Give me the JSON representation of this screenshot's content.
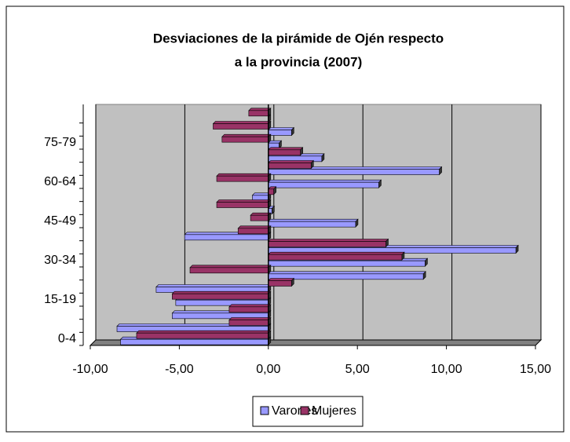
{
  "chart_data": {
    "type": "bar",
    "orientation": "horizontal",
    "title": "Desviaciones de la pirámide de Ojén respecto a la provincia (2007)",
    "categories": [
      "0-4",
      null,
      null,
      "15-19",
      null,
      null,
      "30-34",
      null,
      null,
      "45-49",
      null,
      null,
      "60-64",
      null,
      null,
      "75-79",
      null,
      null
    ],
    "series": [
      {
        "name": "Varones",
        "color": "#9999ff",
        "values": [
          -8.3,
          -8.5,
          -5.4,
          -5.2,
          -6.3,
          8.7,
          8.8,
          13.9,
          -4.7,
          4.9,
          0.2,
          -0.9,
          6.2,
          9.6,
          3.0,
          0.6,
          1.3,
          0
        ]
      },
      {
        "name": "Mujeres",
        "color": "#993366",
        "values": [
          -7.4,
          -2.2,
          -2.2,
          -5.4,
          1.3,
          -4.4,
          7.5,
          6.6,
          -1.7,
          -1.0,
          -2.9,
          0.3,
          -2.9,
          2.4,
          1.8,
          -2.6,
          -3.1,
          -1.1
        ]
      }
    ],
    "xlim": [
      -10,
      15
    ],
    "xticks": [
      {
        "value": -10,
        "label": "-10,00"
      },
      {
        "value": -5,
        "label": "-5,00"
      },
      {
        "value": 0,
        "label": "0,00"
      },
      {
        "value": 5,
        "label": "5,00"
      },
      {
        "value": 10,
        "label": "10,00"
      },
      {
        "value": 15,
        "label": "15,00"
      }
    ],
    "grid": true,
    "legend": "bottom"
  }
}
